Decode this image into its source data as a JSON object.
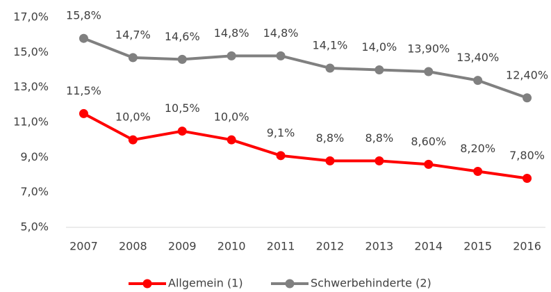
{
  "chart_data": {
    "type": "line",
    "categories": [
      "2007",
      "2008",
      "2009",
      "2010",
      "2011",
      "2012",
      "2013",
      "2014",
      "2015",
      "2016"
    ],
    "series": [
      {
        "name": "Allgemein (1)",
        "color": "#ff0000",
        "values": [
          11.5,
          10.0,
          10.5,
          10.0,
          9.1,
          8.8,
          8.8,
          8.6,
          8.2,
          7.8
        ],
        "value_labels": [
          "11,5%",
          "10,0%",
          "10,5%",
          "10,0%",
          "9,1%",
          "8,8%",
          "8,8%",
          "8,60%",
          "8,20%",
          "7,80%"
        ]
      },
      {
        "name": "Schwerbehinderte (2)",
        "color": "#808080",
        "values": [
          15.8,
          14.7,
          14.6,
          14.8,
          14.8,
          14.1,
          14.0,
          13.9,
          13.4,
          12.4
        ],
        "value_labels": [
          "15,8%",
          "14,7%",
          "14,6%",
          "14,8%",
          "14,8%",
          "14,1%",
          "14,0%",
          "13,90%",
          "13,40%",
          "12,40%"
        ]
      }
    ],
    "ylim": [
      5,
      17
    ],
    "yticks": [
      {
        "value": 5,
        "label": "5,0%"
      },
      {
        "value": 7,
        "label": "7,0%"
      },
      {
        "value": 9,
        "label": "9,0%"
      },
      {
        "value": 11,
        "label": "11,0%"
      },
      {
        "value": 13,
        "label": "13,0%"
      },
      {
        "value": 15,
        "label": "15,0%"
      },
      {
        "value": 17,
        "label": "17,0%"
      }
    ],
    "grid": false,
    "legend": "bottom"
  }
}
